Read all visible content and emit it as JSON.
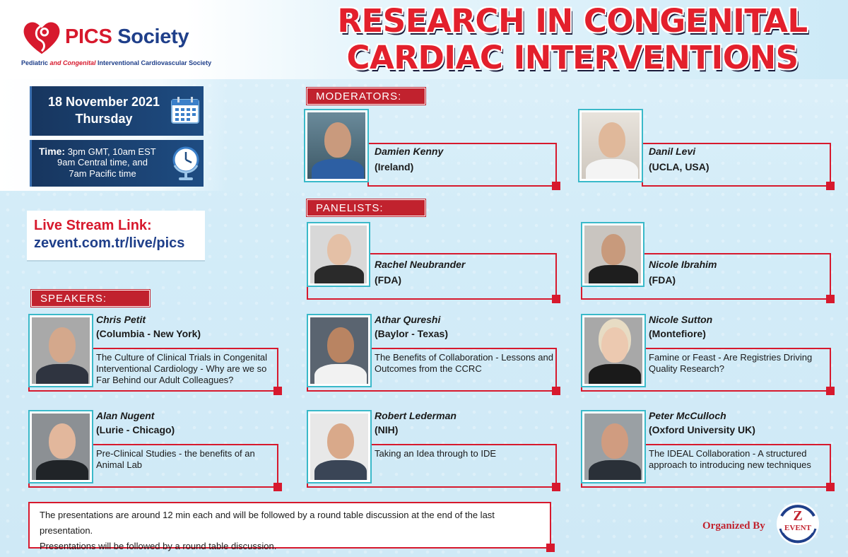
{
  "logo": {
    "name_main": "PICS",
    "name_rest": " Society",
    "sub_pre": "Pediatric ",
    "sub_italic": "and Congenital",
    "sub_post": " Interventional Cardiovascular Society",
    "colors": {
      "blue": "#1f3f8a",
      "red": "#d7192d"
    }
  },
  "title": {
    "line1": "RESEARCH IN CONGENITAL",
    "line2": "CARDIAC INTERVENTIONS"
  },
  "event": {
    "date": "18 November 2021",
    "day": "Thursday",
    "time_label": "Time:",
    "time_line1": " 3pm GMT, 10am EST",
    "time_line2": "9am Central time, and",
    "time_line3": "7am Pacific time",
    "calendar_icon": "calendar-icon",
    "clock_icon": "globe-clock-icon"
  },
  "live": {
    "label": "Live Stream Link:",
    "url": "zevent.com.tr/live/pics"
  },
  "sections": {
    "moderators": "MODERATORS:",
    "panelists": "PANELISTS:",
    "speakers": "SPEAKERS:"
  },
  "moderators": [
    {
      "name": "Damien Kenny",
      "affiliation": "(Ireland)"
    },
    {
      "name": "Danil Levi",
      "affiliation": "(UCLA, USA)"
    }
  ],
  "panelists": [
    {
      "name": "Rachel Neubrander",
      "affiliation": "(FDA)"
    },
    {
      "name": "Nicole Ibrahim",
      "affiliation": "(FDA)"
    }
  ],
  "speakers": [
    {
      "name": "Chris Petit",
      "affiliation": "(Columbia - New York)",
      "talk": "The Culture of Clinical Trials in Congenital Interventional Cardiology - Why are we so Far Behind our Adult Colleagues?"
    },
    {
      "name": "Athar Qureshi",
      "affiliation": "(Baylor - Texas)",
      "talk": "The Benefits of Collaboration - Lessons and Outcomes from the CCRC"
    },
    {
      "name": "Nicole Sutton",
      "affiliation": "(Montefiore)",
      "talk": "Famine or Feast - Are Registries Driving Quality Research?"
    },
    {
      "name": "Alan Nugent",
      "affiliation": "(Lurie - Chicago)",
      "talk": "Pre-Clinical Studies - the benefits of an Animal Lab"
    },
    {
      "name": "Robert Lederman",
      "affiliation": "(NIH)",
      "talk": "Taking an Idea through to IDE"
    },
    {
      "name": "Peter McCulloch",
      "affiliation": "(Oxford University UK)",
      "talk": "The IDEAL Collaboration - A structured approach to introducing new techniques"
    }
  ],
  "note": {
    "line1": "The presentations are around 12 min each and will be followed by a round table discussion at the end of the last presentation.",
    "line2": "Presentations will be followed by a round table discussion."
  },
  "organizer": {
    "label": "Organized By",
    "logo_letter": "Z",
    "logo_word": "EVENT"
  },
  "colors": {
    "accent_red": "#c1222e",
    "navy": "#17365f",
    "teal_frame": "#3ab9c9"
  }
}
